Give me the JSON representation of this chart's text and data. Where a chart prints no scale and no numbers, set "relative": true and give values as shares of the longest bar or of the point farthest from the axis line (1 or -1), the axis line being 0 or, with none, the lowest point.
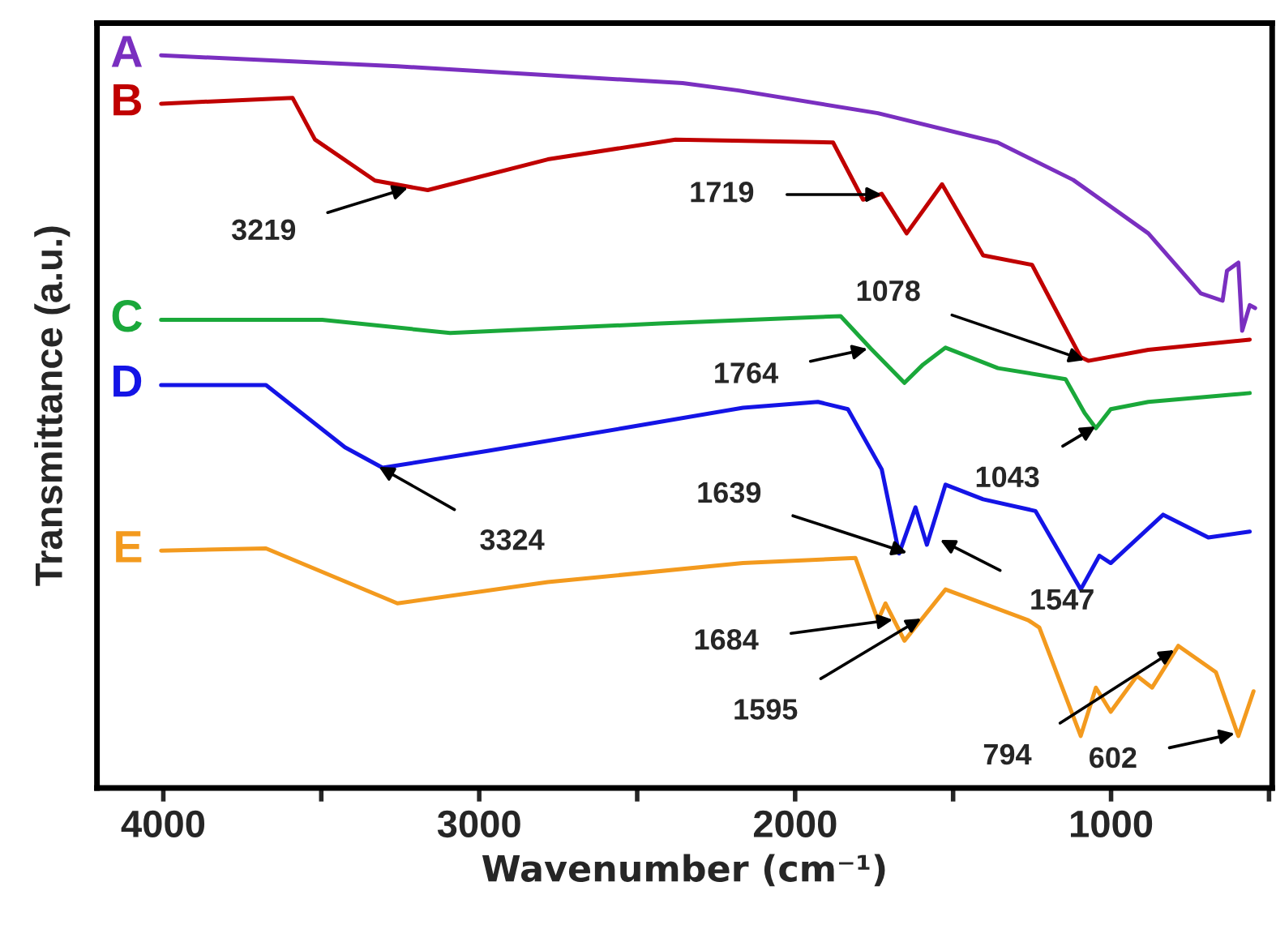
{
  "chart_data": {
    "type": "line",
    "relative": true,
    "xlabel": "Wavenumber (cm⁻¹)",
    "ylabel": "Transmittance (a.u.)",
    "xlim": [
      4210,
      490
    ],
    "xticks": [
      4000,
      {
        "value": 3500,
        "label": null
      },
      3000,
      {
        "value": 2500,
        "label": null
      },
      2000,
      {
        "value": 1500,
        "label": null
      },
      1000,
      {
        "value": 500,
        "label": null
      }
    ],
    "tick_labels": "x",
    "grid": false,
    "legend": false,
    "series": [
      {
        "name": "A",
        "color": "#7a2fc0",
        "x": [
          4007,
          3259,
          2356,
          2179,
          1738,
          1359,
          1120,
          882,
          716,
          647,
          633,
          597,
          585,
          561,
          544
        ],
        "values": [
          1.0,
          0.985,
          0.962,
          0.952,
          0.921,
          0.881,
          0.83,
          0.757,
          0.675,
          0.665,
          0.706,
          0.717,
          0.624,
          0.659,
          0.655
        ]
      },
      {
        "name": "B",
        "color": "#c00000",
        "x": [
          4007,
          3591,
          3520,
          3330,
          3163,
          2783,
          2379,
          1880,
          1785,
          1726,
          1647,
          1535,
          1405,
          1250,
          1096,
          1072,
          882,
          561
        ],
        "values": [
          0.934,
          0.942,
          0.885,
          0.829,
          0.816,
          0.858,
          0.885,
          0.881,
          0.803,
          0.811,
          0.757,
          0.824,
          0.727,
          0.714,
          0.588,
          0.583,
          0.598,
          0.612
        ]
      },
      {
        "name": "C",
        "color": "#1aa83a",
        "x": [
          4007,
          3497,
          3092,
          2427,
          1856,
          1761,
          1654,
          1595,
          1524,
          1358,
          1144,
          1084,
          1048,
          1001,
          882,
          561
        ],
        "values": [
          0.639,
          0.639,
          0.621,
          0.634,
          0.644,
          0.6,
          0.553,
          0.578,
          0.601,
          0.573,
          0.558,
          0.512,
          0.491,
          0.517,
          0.527,
          0.539
        ]
      },
      {
        "name": "D",
        "color": "#1414e6",
        "x": [
          4007,
          3675,
          3425,
          3306,
          2974,
          2546,
          2165,
          1928,
          1833,
          1726,
          1671,
          1619,
          1583,
          1524,
          1405,
          1239,
          1096,
          1037,
          1001,
          835,
          692,
          561
        ],
        "values": [
          0.55,
          0.55,
          0.465,
          0.437,
          0.46,
          0.491,
          0.519,
          0.527,
          0.517,
          0.435,
          0.32,
          0.383,
          0.332,
          0.414,
          0.394,
          0.378,
          0.271,
          0.317,
          0.307,
          0.373,
          0.342,
          0.35
        ]
      },
      {
        "name": "E",
        "color": "#f39a1e",
        "x": [
          4007,
          3675,
          3259,
          2783,
          2165,
          1809,
          1738,
          1714,
          1654,
          1524,
          1262,
          1227,
          1096,
          1048,
          1001,
          918,
          870,
          787,
          668,
          597,
          549
        ],
        "values": [
          0.324,
          0.327,
          0.252,
          0.281,
          0.307,
          0.314,
          0.229,
          0.252,
          0.201,
          0.271,
          0.229,
          0.219,
          0.071,
          0.137,
          0.104,
          0.153,
          0.137,
          0.194,
          0.158,
          0.071,
          0.132
        ]
      }
    ],
    "annotations": [
      {
        "text": "3219",
        "x": 3219,
        "y": 0.82
      },
      {
        "text": "1719",
        "x": 1719,
        "y": 0.81
      },
      {
        "text": "1078",
        "x": 1078,
        "y": 0.583
      },
      {
        "text": "1764",
        "x": 1764,
        "y": 0.6
      },
      {
        "text": "1043",
        "x": 1043,
        "y": 0.495
      },
      {
        "text": "3324",
        "x": 3324,
        "y": 0.44
      },
      {
        "text": "1639",
        "x": 1639,
        "y": 0.32
      },
      {
        "text": "1547",
        "x": 1547,
        "y": 0.34
      },
      {
        "text": "1684",
        "x": 1684,
        "y": 0.23
      },
      {
        "text": "1595",
        "x": 1595,
        "y": 0.233
      },
      {
        "text": "794",
        "x": 794,
        "y": 0.19
      },
      {
        "text": "602",
        "x": 602,
        "y": 0.075
      }
    ]
  }
}
